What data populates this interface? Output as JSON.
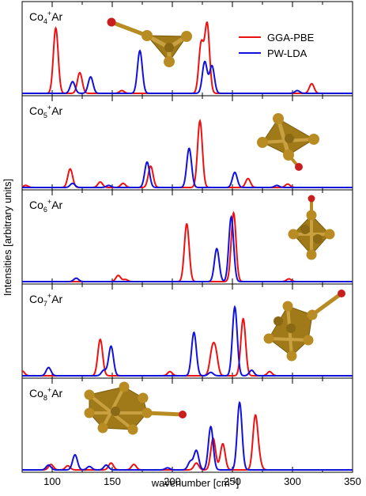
{
  "figure": {
    "ylabel": "Intensities [arbitrary units]",
    "xlabel": "wavenumber [cm",
    "xlabel_sup": "-1",
    "xlabel_close": "]",
    "x_ticks": [
      "100",
      "150",
      "200",
      "250",
      "300",
      "350"
    ]
  },
  "legend": {
    "items": [
      "GGA-PBE",
      "PW-LDA"
    ]
  },
  "colors": {
    "gga_pbe": "#ee1111",
    "pw_lda": "#1111dd",
    "cluster_gold": "#b88c22",
    "argon_red": "#c81e1e"
  },
  "chart_data": [
    {
      "type": "line",
      "panel_label": {
        "base": "Co",
        "sub": "4",
        "sup": "+",
        "tail": "Ar"
      },
      "xlim": [
        75,
        350
      ],
      "series": [
        {
          "name": "GGA-PBE",
          "peaks": [
            [
              103,
              0.95
            ],
            [
              123,
              0.3
            ],
            [
              158,
              0.04
            ],
            [
              224,
              0.72
            ],
            [
              229,
              1.0
            ],
            [
              316,
              0.14
            ]
          ]
        },
        {
          "name": "PW-LDA",
          "peaks": [
            [
              117,
              0.17
            ],
            [
              132,
              0.24
            ],
            [
              173,
              0.62
            ],
            [
              227,
              0.46
            ],
            [
              233,
              0.4
            ],
            [
              304,
              0.04
            ]
          ]
        }
      ]
    },
    {
      "type": "line",
      "panel_label": {
        "base": "Co",
        "sub": "5",
        "sup": "+",
        "tail": "Ar"
      },
      "xlim": [
        75,
        350
      ],
      "series": [
        {
          "name": "GGA-PBE",
          "peaks": [
            [
              78,
              0.03
            ],
            [
              115,
              0.27
            ],
            [
              140,
              0.08
            ],
            [
              159,
              0.06
            ],
            [
              182,
              0.31
            ],
            [
              223,
              0.97
            ],
            [
              263,
              0.13
            ],
            [
              296,
              0.05
            ]
          ]
        },
        {
          "name": "PW-LDA",
          "peaks": [
            [
              117,
              0.06
            ],
            [
              147,
              0.03
            ],
            [
              179,
              0.37
            ],
            [
              214,
              0.57
            ],
            [
              252,
              0.22
            ],
            [
              287,
              0.03
            ]
          ]
        }
      ]
    },
    {
      "type": "line",
      "panel_label": {
        "base": "Co",
        "sub": "6",
        "sup": "+",
        "tail": "Ar"
      },
      "xlim": [
        75,
        350
      ],
      "series": [
        {
          "name": "GGA-PBE",
          "peaks": [
            [
              155,
              0.09
            ],
            [
              161,
              0.03
            ],
            [
              212,
              0.84
            ],
            [
              251,
              1.0
            ],
            [
              297,
              0.04
            ]
          ]
        },
        {
          "name": "PW-LDA",
          "peaks": [
            [
              120,
              0.05
            ],
            [
              237,
              0.48
            ],
            [
              249,
              0.94
            ]
          ]
        }
      ]
    },
    {
      "type": "line",
      "panel_label": {
        "base": "Co",
        "sub": "7",
        "sup": "+",
        "tail": "Ar"
      },
      "xlim": [
        75,
        350
      ],
      "series": [
        {
          "name": "GGA-PBE",
          "peaks": [
            [
              75,
              0.07
            ],
            [
              140,
              0.53
            ],
            [
              198,
              0.06
            ],
            [
              233,
              0.32
            ],
            [
              236,
              0.32
            ],
            [
              259,
              0.83
            ],
            [
              281,
              0.06
            ]
          ]
        },
        {
          "name": "PW-LDA",
          "peaks": [
            [
              97,
              0.12
            ],
            [
              143,
              0.08
            ],
            [
              149,
              0.43
            ],
            [
              218,
              0.63
            ],
            [
              232,
              0.05
            ],
            [
              252,
              1.0
            ],
            [
              266,
              0.08
            ]
          ]
        }
      ]
    },
    {
      "type": "line",
      "panel_label": {
        "base": "Co",
        "sub": "8",
        "sup": "+",
        "tail": "Ar"
      },
      "xlim": [
        75,
        350
      ],
      "series": [
        {
          "name": "GGA-PBE",
          "peaks": [
            [
              99,
              0.08
            ],
            [
              113,
              0.06
            ],
            [
              149,
              0.1
            ],
            [
              168,
              0.08
            ],
            [
              220,
              0.1
            ],
            [
              234,
              0.46
            ],
            [
              242,
              0.38
            ],
            [
              269,
              0.75
            ],
            [
              272,
              0.14
            ]
          ]
        },
        {
          "name": "PW-LDA",
          "peaks": [
            [
              97,
              0.07
            ],
            [
              119,
              0.22
            ],
            [
              131,
              0.05
            ],
            [
              145,
              0.07
            ],
            [
              196,
              0.03
            ],
            [
              215,
              0.12
            ],
            [
              220,
              0.28
            ],
            [
              232,
              0.63
            ],
            [
              256,
              0.98
            ]
          ]
        }
      ]
    }
  ]
}
